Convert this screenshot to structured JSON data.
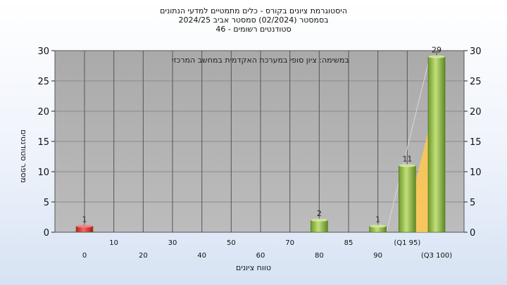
{
  "title_lines": [
    "היסטוגרמת ציונים בקורס - כלים מתמטיים למדעי הנתונים",
    "בסמסטר  (02/2024)  סמסטר אביב 2024/25",
    "סטודנטים רשומים - 46"
  ],
  "chart_data": {
    "type": "bar",
    "title": "היסטוגרמת ציונים בקורס - כלים מתמטיים למדעי הנתונים",
    "annotation": "במשימה: ציון סופי במערכת האקדמית במחשב המרכזי",
    "xlabel": "טווח ציונים",
    "ylabel": "מספר סטודנטים",
    "ylim": [
      0,
      30
    ],
    "yticks": [
      0,
      5,
      10,
      15,
      20,
      25,
      30
    ],
    "grid": true,
    "categories": [
      "0",
      "10",
      "20",
      "30",
      "40",
      "50",
      "60",
      "70",
      "80",
      "85",
      "90",
      "(Q1 95)",
      "(Q3 100)"
    ],
    "values": [
      1,
      0,
      0,
      0,
      0,
      0,
      0,
      0,
      2,
      0,
      1,
      11,
      29
    ],
    "value_labels": [
      "1",
      "",
      "",
      "",
      "",
      "",
      "",
      "",
      "2",
      "",
      "1",
      "11",
      "29"
    ],
    "bar_colors": [
      "#d93030",
      "#9fc055",
      "#9fc055",
      "#9fc055",
      "#9fc055",
      "#9fc055",
      "#9fc055",
      "#9fc055",
      "#9fc055",
      "#9fc055",
      "#9fc055",
      "#9fc055",
      "#9fc055"
    ],
    "quartile_band": {
      "from_category": "(Q1 95)",
      "to_category": "(Q3 100)",
      "color": "#ffc94d"
    },
    "plot_background": "#b3b3b3"
  }
}
